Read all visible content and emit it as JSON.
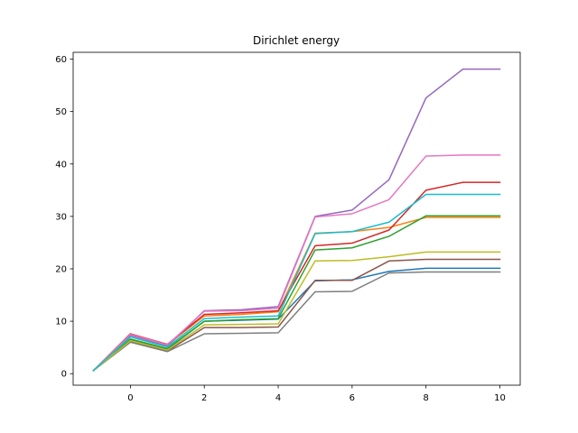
{
  "chart_data": {
    "type": "line",
    "title": "Dirichlet energy",
    "xlabel": "",
    "ylabel": "",
    "x": [
      -1,
      0,
      1,
      2,
      3,
      4,
      5,
      6,
      7,
      8,
      9,
      10
    ],
    "xlim": [
      -1.55,
      10.55
    ],
    "ylim": [
      -2.2,
      61.3
    ],
    "xticks": [
      0,
      2,
      4,
      6,
      8,
      10
    ],
    "yticks": [
      0,
      10,
      20,
      30,
      40,
      50,
      60
    ],
    "grid": false,
    "legend": false,
    "series": [
      {
        "color": "#1f77b4",
        "values": [
          0.6,
          6.5,
          4.7,
          10.0,
          10.2,
          10.4,
          17.7,
          17.9,
          19.5,
          20.1,
          20.1,
          20.1
        ]
      },
      {
        "color": "#ff7f0e",
        "values": [
          0.6,
          7.6,
          5.5,
          11.0,
          11.3,
          11.8,
          26.8,
          27.1,
          27.9,
          29.8,
          29.8,
          29.8
        ]
      },
      {
        "color": "#2ca02c",
        "values": [
          0.6,
          6.6,
          4.8,
          10.0,
          10.3,
          10.5,
          23.6,
          24.0,
          26.2,
          30.1,
          30.1,
          30.1
        ]
      },
      {
        "color": "#d62728",
        "values": [
          0.6,
          7.6,
          5.6,
          11.3,
          11.6,
          12.0,
          24.4,
          24.9,
          27.4,
          35.0,
          36.5,
          36.5
        ]
      },
      {
        "color": "#9467bd",
        "values": [
          0.6,
          7.3,
          5.3,
          12.0,
          12.2,
          12.8,
          30.0,
          31.2,
          37.0,
          52.6,
          58.1,
          58.1
        ]
      },
      {
        "color": "#8c564b",
        "values": [
          0.6,
          6.2,
          4.3,
          8.8,
          8.8,
          8.9,
          17.8,
          17.8,
          21.5,
          21.8,
          21.8,
          21.8
        ]
      },
      {
        "color": "#e377c2",
        "values": [
          0.6,
          7.5,
          5.5,
          11.9,
          12.0,
          12.5,
          29.9,
          30.5,
          33.2,
          41.5,
          41.7,
          41.7
        ]
      },
      {
        "color": "#7f7f7f",
        "values": [
          0.6,
          6.0,
          4.2,
          7.6,
          7.7,
          7.8,
          15.6,
          15.7,
          19.2,
          19.4,
          19.4,
          19.4
        ]
      },
      {
        "color": "#bcbd22",
        "values": [
          0.6,
          6.3,
          4.5,
          9.3,
          9.4,
          9.5,
          21.5,
          21.6,
          22.3,
          23.2,
          23.2,
          23.2
        ]
      },
      {
        "color": "#17becf",
        "values": [
          0.6,
          7.0,
          5.1,
          10.5,
          10.8,
          11.0,
          26.7,
          27.1,
          28.9,
          34.2,
          34.2,
          34.2
        ]
      }
    ]
  }
}
